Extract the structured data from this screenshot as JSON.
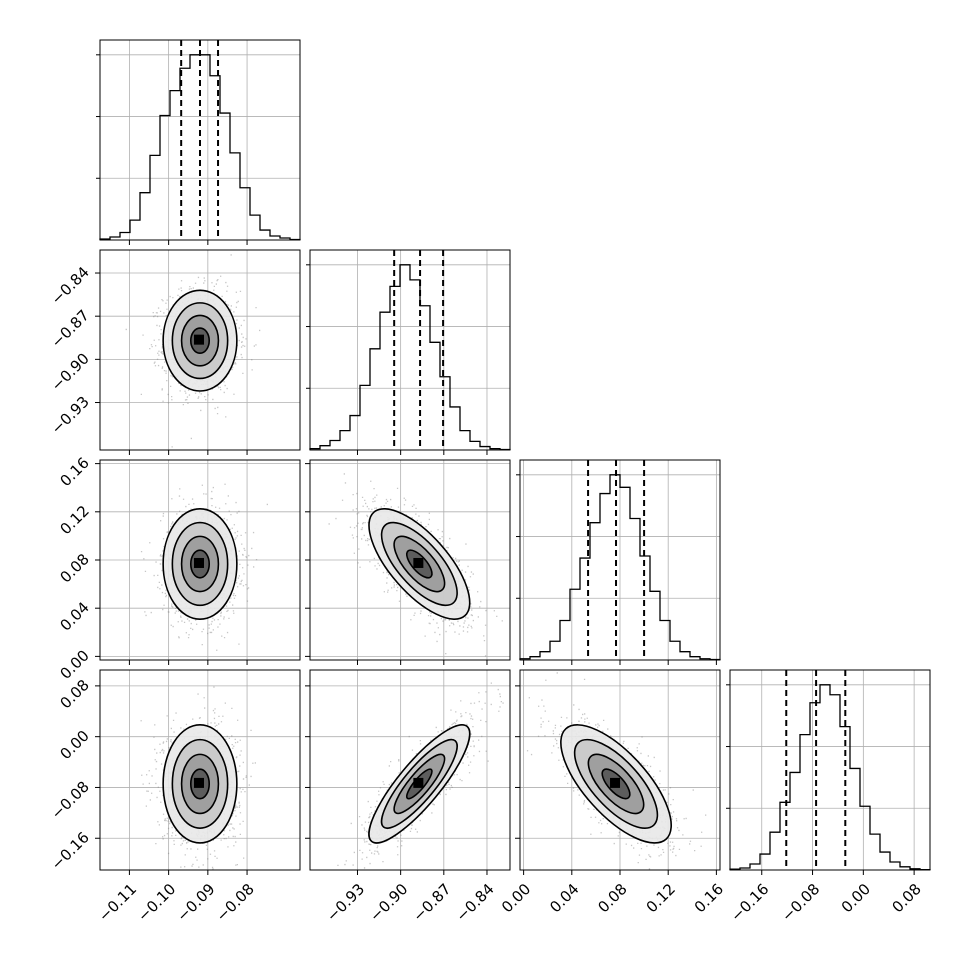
{
  "chart_data": {
    "type": "corner",
    "parameters": 4,
    "quantiles": [
      0.16,
      0.5,
      0.84
    ],
    "ranges": [
      [
        -0.1175,
        -0.0665
      ],
      [
        -0.963,
        -0.824
      ],
      [
        -0.003,
        0.163
      ],
      [
        -0.21,
        0.105
      ]
    ],
    "ticks": [
      [
        -0.11,
        -0.1,
        -0.09,
        -0.08
      ],
      [
        -0.93,
        -0.9,
        -0.87,
        -0.84
      ],
      [
        0.0,
        0.04,
        0.08,
        0.12,
        0.16
      ],
      [
        -0.16,
        -0.08,
        0.0,
        0.08
      ]
    ],
    "tick_labels": [
      [
        "−0.11",
        "−0.10",
        "−0.09",
        "−0.08"
      ],
      [
        "−0.93",
        "−0.90",
        "−0.87",
        "−0.84"
      ],
      [
        "0.00",
        "0.04",
        "0.08",
        "0.12",
        "0.16"
      ],
      [
        "−0.16",
        "−0.08",
        "0.00",
        "0.08"
      ]
    ],
    "y_tick_labels": [
      null,
      [
        "−0.84",
        "−0.87",
        "−0.90",
        "−0.93"
      ],
      [
        "0.16",
        "0.12",
        "0.08",
        "0.04",
        "0.00"
      ],
      [
        "0.08",
        "0.00",
        "−0.08",
        "−0.16"
      ]
    ],
    "marginals": [
      {
        "edges_start": -0.1175,
        "bin_width": 0.00255,
        "counts": [
          2,
          6,
          15,
          40,
          95,
          170,
          250,
          300,
          345,
          372,
          372,
          330,
          255,
          175,
          105,
          50,
          20,
          8,
          4,
          1
        ],
        "quantile_values": [
          -0.0968,
          -0.092,
          -0.0874
        ]
      },
      {
        "edges_start": -0.963,
        "bin_width": 0.00695,
        "counts": [
          3,
          10,
          22,
          45,
          80,
          150,
          235,
          320,
          380,
          430,
          395,
          335,
          250,
          170,
          100,
          45,
          20,
          8,
          3,
          1
        ],
        "quantile_values": [
          -0.9045,
          -0.8865,
          -0.8705
        ]
      },
      {
        "edges_start": -0.003,
        "bin_width": 0.0083,
        "counts": [
          3,
          8,
          20,
          45,
          95,
          170,
          245,
          330,
          400,
          445,
          415,
          340,
          250,
          165,
          95,
          45,
          20,
          8,
          3,
          1
        ],
        "quantile_values": [
          0.0535,
          0.0767,
          0.1
        ]
      },
      {
        "edges_start": -0.21,
        "bin_width": 0.01575,
        "counts": [
          2,
          5,
          15,
          40,
          95,
          170,
          245,
          340,
          420,
          465,
          440,
          360,
          255,
          160,
          90,
          45,
          20,
          8,
          3,
          1
        ],
        "quantile_values": [
          -0.1214,
          -0.0744,
          -0.0284
        ]
      }
    ],
    "posterior": {
      "mean": [
        -0.092,
        -0.887,
        0.0767,
        -0.0744
      ],
      "std": [
        0.0047,
        0.0175,
        0.0229,
        0.0465
      ],
      "correlation": [
        [
          1.0,
          0.0,
          0.0,
          0.0
        ],
        [
          0.0,
          1.0,
          -0.7,
          0.85
        ],
        [
          0.0,
          -0.7,
          1.0,
          -0.7
        ],
        [
          0.0,
          0.85,
          -0.7,
          1.0
        ]
      ]
    },
    "contour_levels_sigma": [
      0.5,
      1.0,
      1.5,
      2.0
    ],
    "colors": {
      "contour": "#000000",
      "points": "#808080",
      "grid": "#b0b0b0"
    },
    "grid": true
  }
}
